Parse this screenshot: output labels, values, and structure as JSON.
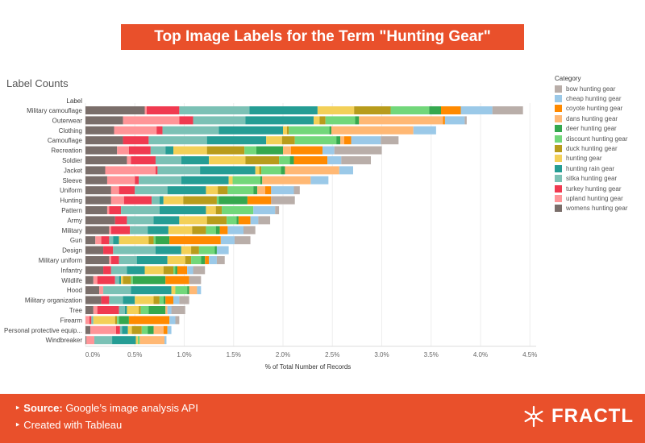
{
  "banner": {
    "title": "Top Image Labels for the Term \"Hunting Gear\""
  },
  "footer": {
    "source_label": "Source:",
    "source_text": "Google’s image analysis API",
    "created": "Created with Tableau",
    "logo": "FRACTL"
  },
  "chart_data": {
    "type": "bar",
    "orientation": "horizontal",
    "stacked": true,
    "title": "Label Counts",
    "ylabel": "Label",
    "xlabel": "% of Total Number of Records",
    "xlim": [
      0,
      4.5
    ],
    "xticks": [
      "0.0%",
      "0.5%",
      "1.0%",
      "1.5%",
      "2.0%",
      "2.5%",
      "3.0%",
      "3.5%",
      "4.0%",
      "4.5%"
    ],
    "grid": true,
    "legend_title": "Category",
    "legend_position": "right",
    "categories": [
      "Military camouflage",
      "Outerwear",
      "Clothing",
      "Camouflage",
      "Recreation",
      "Soldier",
      "Jacket",
      "Sleeve",
      "Uniform",
      "Hunting",
      "Pattern",
      "Army",
      "Military",
      "Gun",
      "Design",
      "Military uniform",
      "Infantry",
      "Wildlife",
      "Hood",
      "Military organization",
      "Tree",
      "Firearm",
      "Personal protective equip...",
      "Windbreaker"
    ],
    "series": [
      {
        "name": "womens hunting gear",
        "color": "#7a6e6a",
        "values": [
          0.6,
          0.38,
          0.29,
          0.38,
          0.32,
          0.42,
          0.2,
          0.22,
          0.26,
          0.26,
          0.22,
          0.3,
          0.24,
          0.1,
          0.18,
          0.24,
          0.18,
          0.08,
          0.14,
          0.16,
          0.08,
          0,
          0.05,
          0.01
        ]
      },
      {
        "name": "upland hunting gear",
        "color": "#ff9598",
        "values": [
          0.02,
          0.57,
          0.43,
          0,
          0.12,
          0.04,
          0.51,
          0.28,
          0.08,
          0.13,
          0.02,
          0,
          0.02,
          0.06,
          0,
          0.02,
          0,
          0.04,
          0.04,
          0,
          0.04,
          0.04,
          0.26,
          0.08
        ]
      },
      {
        "name": "turkey hunting gear",
        "color": "#f03a50",
        "values": [
          0.33,
          0.14,
          0.06,
          0.26,
          0.22,
          0.25,
          0.02,
          0.04,
          0.16,
          0.28,
          0.12,
          0.12,
          0.19,
          0.08,
          0.1,
          0.08,
          0.08,
          0.18,
          0,
          0.08,
          0.22,
          0.02,
          0.04,
          0
        ]
      },
      {
        "name": "sitka hunting gear",
        "color": "#7bc1b5",
        "values": [
          0.71,
          0.53,
          0.57,
          0.59,
          0.15,
          0.26,
          0.43,
          0.43,
          0.33,
          0.08,
          0.39,
          0.27,
          0.18,
          0.04,
          0.43,
          0.18,
          0.16,
          0.04,
          0.28,
          0.14,
          0.06,
          0.02,
          0.02,
          0.18
        ]
      },
      {
        "name": "hunting rain gear",
        "color": "#259d94",
        "values": [
          0.69,
          0.69,
          0.65,
          0.6,
          0.08,
          0.28,
          0.56,
          0.48,
          0.39,
          0.04,
          0.47,
          0.26,
          0.21,
          0.06,
          0.26,
          0.31,
          0.18,
          0.02,
          0.41,
          0.12,
          0.02,
          0,
          0.06,
          0.24
        ]
      },
      {
        "name": "hunting gear",
        "color": "#f3d058",
        "values": [
          0.37,
          0.06,
          0.04,
          0.16,
          0.34,
          0.37,
          0.04,
          0.04,
          0.12,
          0.2,
          0.1,
          0.28,
          0.24,
          0.3,
          0.1,
          0.18,
          0.19,
          0.02,
          0.04,
          0.19,
          0.12,
          0.22,
          0.04,
          0.02
        ]
      },
      {
        "name": "duck hunting gear",
        "color": "#b89c1c",
        "values": [
          0.37,
          0.06,
          0.02,
          0.13,
          0.38,
          0.34,
          0.02,
          0,
          0.1,
          0.34,
          0.06,
          0.2,
          0.14,
          0.05,
          0.08,
          0.06,
          0.1,
          0.08,
          0,
          0.06,
          0.02,
          0.02,
          0.1,
          0
        ]
      },
      {
        "name": "discount hunting gear",
        "color": "#72d77a",
        "values": [
          0.39,
          0.3,
          0.41,
          0.42,
          0.12,
          0.11,
          0.2,
          0.28,
          0.26,
          0.02,
          0.32,
          0.1,
          0.1,
          0.02,
          0.16,
          0.1,
          0.02,
          0.02,
          0.12,
          0.04,
          0.08,
          0.02,
          0.06,
          0.02
        ]
      },
      {
        "name": "deer hunting gear",
        "color": "#35a84e",
        "values": [
          0.12,
          0.04,
          0.02,
          0.04,
          0.27,
          0.04,
          0.04,
          0.02,
          0.04,
          0.29,
          0,
          0.02,
          0.04,
          0.14,
          0.02,
          0.04,
          0.02,
          0.33,
          0.02,
          0.02,
          0.17,
          0.1,
          0.06,
          0
        ]
      },
      {
        "name": "dans hunting gear",
        "color": "#ffb874",
        "values": [
          0,
          0.85,
          0.83,
          0.04,
          0.08,
          0,
          0.55,
          0.49,
          0.08,
          0,
          0,
          0,
          0,
          0,
          0,
          0,
          0,
          0,
          0.08,
          0,
          0.02,
          0,
          0.1,
          0.25
        ]
      },
      {
        "name": "coyote hunting gear",
        "color": "#ff8a00",
        "values": [
          0.2,
          0.02,
          0,
          0.07,
          0.32,
          0.34,
          0,
          0,
          0.06,
          0.24,
          0,
          0.12,
          0.08,
          0.52,
          0,
          0.04,
          0.1,
          0.24,
          0,
          0.08,
          0,
          0.41,
          0.04,
          0
        ]
      },
      {
        "name": "cheap hunting gear",
        "color": "#9bc9e8",
        "values": [
          0.32,
          0.2,
          0.23,
          0.3,
          0.12,
          0.14,
          0.14,
          0.18,
          0.23,
          0,
          0.22,
          0.08,
          0.16,
          0.14,
          0.12,
          0.08,
          0.06,
          0,
          0.04,
          0.06,
          0.04,
          0.06,
          0.04,
          0.02
        ]
      },
      {
        "name": "bow hunting gear",
        "color": "#b9aea9",
        "values": [
          0.31,
          0.02,
          0,
          0.18,
          0.48,
          0.3,
          0,
          0,
          0.06,
          0.24,
          0.04,
          0.12,
          0.12,
          0.16,
          0,
          0.08,
          0.12,
          0.12,
          0,
          0.1,
          0.14,
          0.04,
          0,
          0
        ]
      }
    ]
  }
}
